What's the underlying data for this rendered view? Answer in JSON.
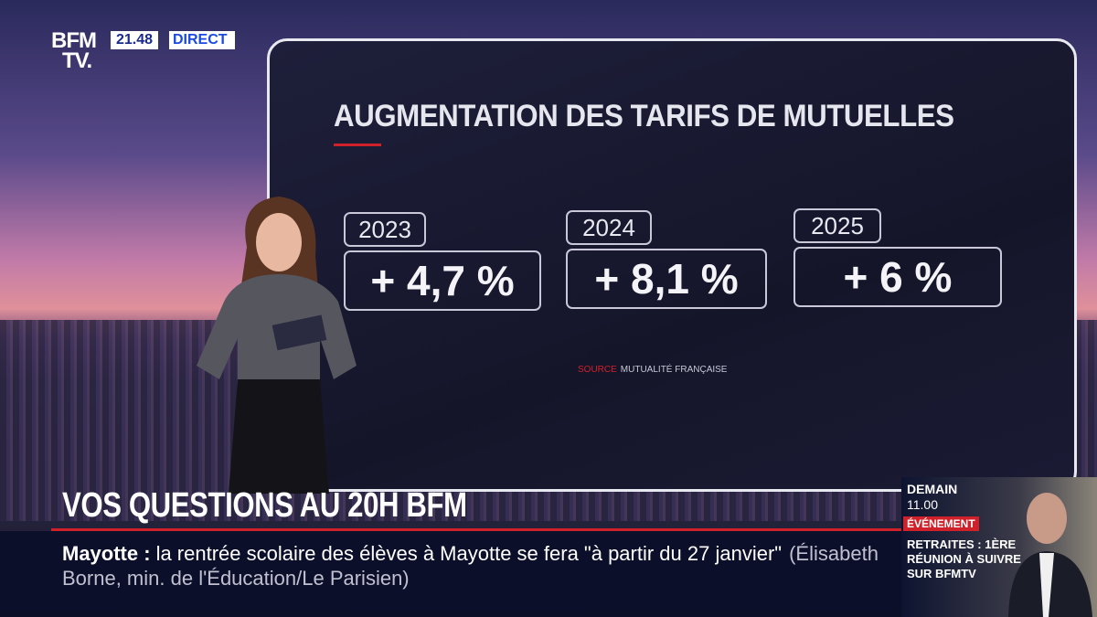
{
  "header": {
    "logo": [
      "BFM",
      "TV."
    ],
    "time": "21.48",
    "live": "DIRECT"
  },
  "card": {
    "title": "AUGMENTATION DES TARIFS DE MUTUELLES",
    "items": [
      {
        "year": "2023",
        "value": "+ 4,7 %"
      },
      {
        "year": "2024",
        "value": "+ 8,1 %"
      },
      {
        "year": "2025",
        "value": "+ 6 %"
      }
    ],
    "source": {
      "label": "SOURCE",
      "name": "MUTUALITÉ FRANÇAISE"
    }
  },
  "banner": {
    "title": "VOS QUESTIONS AU 20H BFM"
  },
  "ticker": {
    "topic": "Mayotte :",
    "text": "la rentrée scolaire des élèves à Mayotte se fera \"à partir du 27 janvier\"",
    "attribution": "(Élisabeth Borne, min. de l'Éducation/Le Parisien)"
  },
  "side": {
    "day": "DEMAIN",
    "time": "11.00",
    "tag": "ÉVÉNEMENT",
    "headline": [
      "RETRAITES : 1ÈRE",
      "RÉUNION À SUIVRE",
      "SUR BFMTV"
    ]
  }
}
